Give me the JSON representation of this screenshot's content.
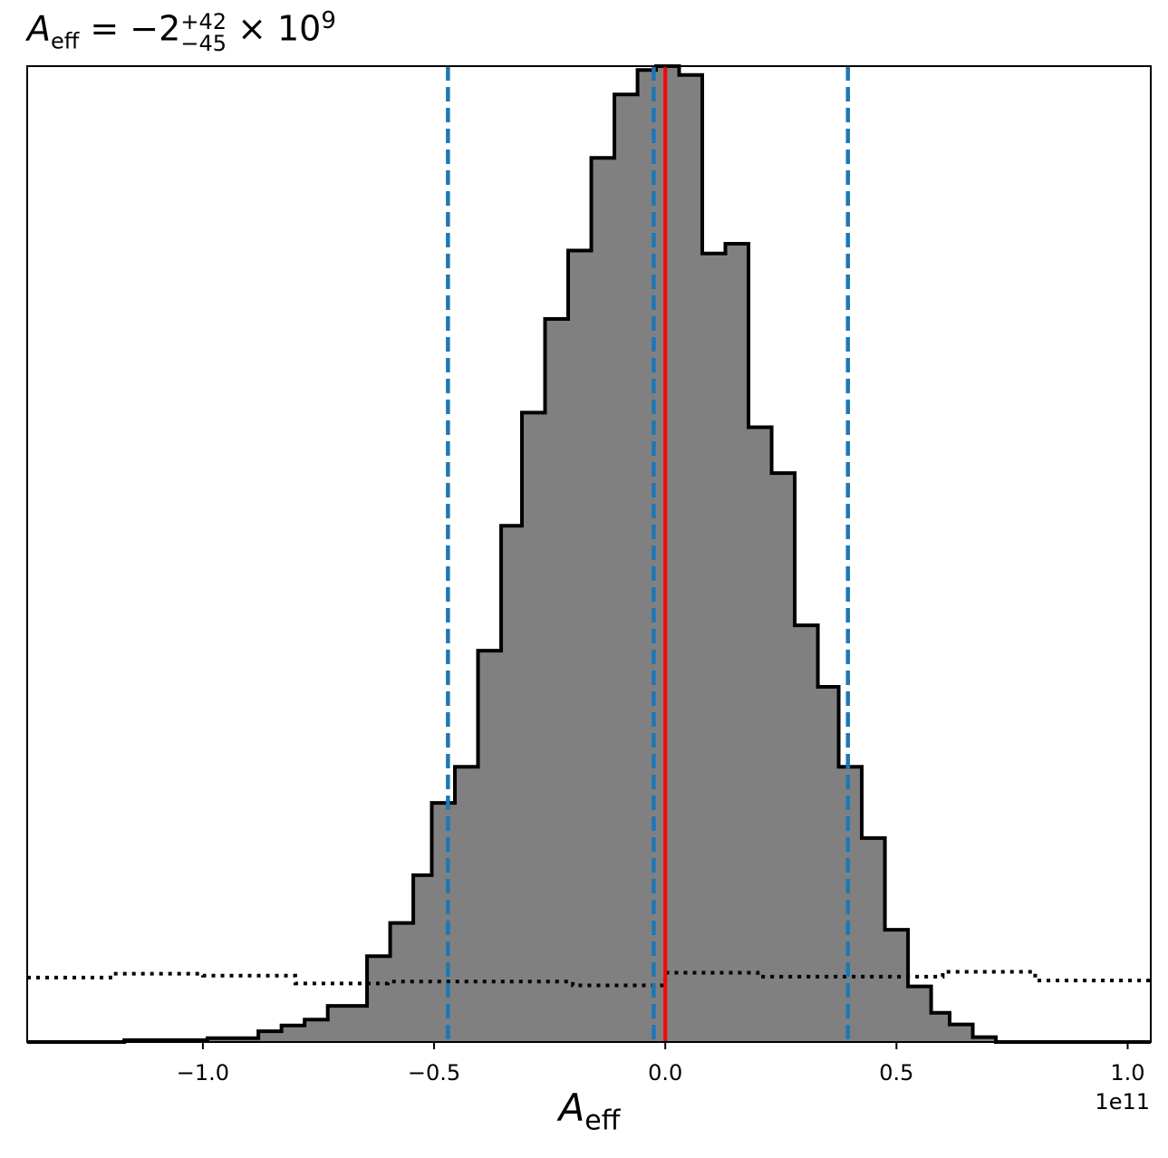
{
  "title": {
    "var_main": "A",
    "var_sub": "eff",
    "equals": " = −2",
    "sup": "+42",
    "sub": "−45",
    "times": " × 10",
    "exp": "9"
  },
  "axis": {
    "xlabel_main": "A",
    "xlabel_sub": "eff",
    "offset_text": "1e11"
  },
  "chart_data": {
    "type": "bar",
    "subtype": "step-histogram",
    "title": "A_eff = −2^{+42}_{−45} × 10^9",
    "xlabel": "A_eff",
    "x_offset": "1e11",
    "xlim": [
      -1.38,
      1.05
    ],
    "ylim": [
      0,
      1.0
    ],
    "y_ticks_visible": false,
    "xticks": [
      -1.0,
      -0.5,
      0.0,
      0.5,
      1.0
    ],
    "xtick_labels": [
      "−1.0",
      "−0.5",
      "0.0",
      "0.5",
      "1.0"
    ],
    "bins_x_units": "1e11",
    "bin_edges": [
      -1.38,
      -1.17,
      -0.99,
      -0.88,
      -0.83,
      -0.78,
      -0.73,
      -0.645,
      -0.595,
      -0.545,
      -0.505,
      -0.455,
      -0.405,
      -0.355,
      -0.31,
      -0.26,
      -0.21,
      -0.16,
      -0.11,
      -0.06,
      -0.02,
      0.03,
      0.08,
      0.13,
      0.18,
      0.23,
      0.28,
      0.33,
      0.375,
      0.425,
      0.475,
      0.525,
      0.575,
      0.615,
      0.665,
      0.715,
      0.795,
      0.86,
      1.05
    ],
    "posterior_heights": [
      0.0,
      0.002,
      0.004,
      0.011,
      0.017,
      0.023,
      0.037,
      0.088,
      0.122,
      0.171,
      0.245,
      0.282,
      0.401,
      0.529,
      0.645,
      0.741,
      0.811,
      0.906,
      0.971,
      0.996,
      1.0,
      0.991,
      0.808,
      0.818,
      0.63,
      0.583,
      0.427,
      0.364,
      0.282,
      0.209,
      0.115,
      0.057,
      0.03,
      0.018,
      0.005,
      0.0,
      0.0,
      0.0
    ],
    "prior_bin_edges": [
      -1.38,
      -1.2,
      -1.0,
      -0.8,
      -0.6,
      -0.2,
      0.0,
      0.2,
      0.6,
      0.8,
      1.05
    ],
    "prior_heights": [
      0.066,
      0.07,
      0.068,
      0.06,
      0.062,
      0.058,
      0.071,
      0.067,
      0.072,
      0.063
    ],
    "vlines": [
      {
        "x": -0.47,
        "style": "dashed",
        "color": "#1f77b4"
      },
      {
        "x": -0.025,
        "style": "dashed",
        "color": "#1f77b4"
      },
      {
        "x": 0.395,
        "style": "dashed",
        "color": "#1f77b4"
      },
      {
        "x": 0.0,
        "style": "solid",
        "color": "#ff0000"
      }
    ],
    "colors": {
      "fill": "#808080",
      "edge": "#000000",
      "prior": "#000000"
    }
  }
}
